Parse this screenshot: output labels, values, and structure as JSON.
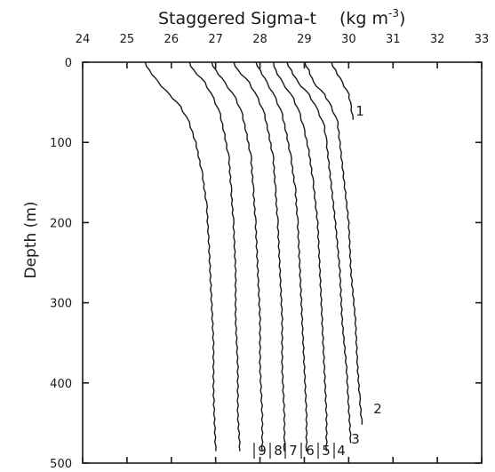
{
  "chart_data": {
    "type": "line",
    "title": "",
    "xlabel": "Staggered Sigma-t",
    "xunit": "(kg m",
    "xunit_exp": "-3",
    "xunit_close": ")",
    "ylabel": "Depth (m)",
    "xlim": [
      24,
      33
    ],
    "ylim": [
      0,
      500
    ],
    "y_inverted": true,
    "x_axis_position": "top",
    "grid": false,
    "legend": "none",
    "x_ticks": [
      "24",
      "25",
      "26",
      "27",
      "28",
      "29",
      "30",
      "31",
      "32",
      "33"
    ],
    "y_ticks": [
      "0",
      "100",
      "200",
      "300",
      "400",
      "500"
    ],
    "series": [
      {
        "name": "1",
        "points": [
          [
            29.6,
            0
          ],
          [
            29.7,
            10
          ],
          [
            29.85,
            25
          ],
          [
            30.0,
            40
          ],
          [
            30.05,
            55
          ],
          [
            30.1,
            72
          ]
        ]
      },
      {
        "name": "2",
        "points": [
          [
            29.0,
            0
          ],
          [
            29.1,
            10
          ],
          [
            29.2,
            25
          ],
          [
            29.45,
            40
          ],
          [
            29.6,
            55
          ],
          [
            29.75,
            75
          ],
          [
            29.8,
            100
          ],
          [
            29.9,
            150
          ],
          [
            30.0,
            200
          ],
          [
            30.05,
            260
          ],
          [
            30.15,
            320
          ],
          [
            30.2,
            380
          ],
          [
            30.25,
            420
          ],
          [
            30.3,
            452
          ]
        ]
      },
      {
        "name": "3",
        "points": [
          [
            28.6,
            0
          ],
          [
            28.7,
            10
          ],
          [
            28.85,
            25
          ],
          [
            29.1,
            40
          ],
          [
            29.3,
            60
          ],
          [
            29.45,
            80
          ],
          [
            29.5,
            100
          ],
          [
            29.6,
            150
          ],
          [
            29.7,
            200
          ],
          [
            29.8,
            260
          ],
          [
            29.85,
            320
          ],
          [
            29.95,
            380
          ],
          [
            30.0,
            430
          ],
          [
            30.05,
            475
          ]
        ]
      },
      {
        "name": "4",
        "points": [
          [
            28.3,
            0
          ],
          [
            28.35,
            10
          ],
          [
            28.5,
            25
          ],
          [
            28.75,
            45
          ],
          [
            28.9,
            65
          ],
          [
            29.0,
            85
          ],
          [
            29.1,
            110
          ],
          [
            29.2,
            150
          ],
          [
            29.3,
            200
          ],
          [
            29.35,
            260
          ],
          [
            29.4,
            320
          ],
          [
            29.45,
            380
          ],
          [
            29.5,
            440
          ],
          [
            29.5,
            485
          ]
        ]
      },
      {
        "name": "5",
        "points": [
          [
            27.9,
            0
          ],
          [
            28.0,
            10
          ],
          [
            28.15,
            25
          ],
          [
            28.35,
            45
          ],
          [
            28.5,
            65
          ],
          [
            28.6,
            90
          ],
          [
            28.7,
            120
          ],
          [
            28.8,
            160
          ],
          [
            28.85,
            200
          ],
          [
            28.9,
            260
          ],
          [
            28.95,
            320
          ],
          [
            29.0,
            380
          ],
          [
            29.05,
            440
          ],
          [
            29.05,
            485
          ]
        ]
      },
      {
        "name": "6",
        "points": [
          [
            27.4,
            0
          ],
          [
            27.5,
            10
          ],
          [
            27.75,
            25
          ],
          [
            27.95,
            45
          ],
          [
            28.1,
            65
          ],
          [
            28.2,
            90
          ],
          [
            28.3,
            120
          ],
          [
            28.35,
            160
          ],
          [
            28.4,
            200
          ],
          [
            28.45,
            260
          ],
          [
            28.5,
            320
          ],
          [
            28.5,
            380
          ],
          [
            28.55,
            440
          ],
          [
            28.55,
            485
          ]
        ]
      },
      {
        "name": "7",
        "points": [
          [
            26.9,
            0
          ],
          [
            27.0,
            10
          ],
          [
            27.2,
            25
          ],
          [
            27.45,
            45
          ],
          [
            27.6,
            65
          ],
          [
            27.7,
            90
          ],
          [
            27.8,
            120
          ],
          [
            27.85,
            160
          ],
          [
            27.9,
            200
          ],
          [
            27.95,
            260
          ],
          [
            28.0,
            320
          ],
          [
            28.0,
            380
          ],
          [
            28.05,
            440
          ],
          [
            28.05,
            485
          ]
        ]
      },
      {
        "name": "8",
        "points": [
          [
            26.4,
            0
          ],
          [
            26.5,
            10
          ],
          [
            26.75,
            25
          ],
          [
            26.95,
            45
          ],
          [
            27.1,
            65
          ],
          [
            27.2,
            90
          ],
          [
            27.3,
            120
          ],
          [
            27.35,
            160
          ],
          [
            27.4,
            200
          ],
          [
            27.45,
            260
          ],
          [
            27.45,
            320
          ],
          [
            27.5,
            380
          ],
          [
            27.5,
            440
          ],
          [
            27.55,
            485
          ]
        ]
      },
      {
        "name": "9",
        "points": [
          [
            25.4,
            0
          ],
          [
            25.5,
            10
          ],
          [
            25.7,
            25
          ],
          [
            25.95,
            40
          ],
          [
            26.2,
            55
          ],
          [
            26.4,
            75
          ],
          [
            26.55,
            100
          ],
          [
            26.7,
            140
          ],
          [
            26.8,
            180
          ],
          [
            26.85,
            230
          ],
          [
            26.9,
            290
          ],
          [
            26.95,
            350
          ],
          [
            26.95,
            410
          ],
          [
            27.0,
            485
          ]
        ]
      }
    ],
    "series_labels": {
      "1": "1",
      "2": "2",
      "3": "3",
      "4": "4",
      "5": "5",
      "6": "6",
      "7": "7",
      "8": "8",
      "9": "9"
    }
  }
}
